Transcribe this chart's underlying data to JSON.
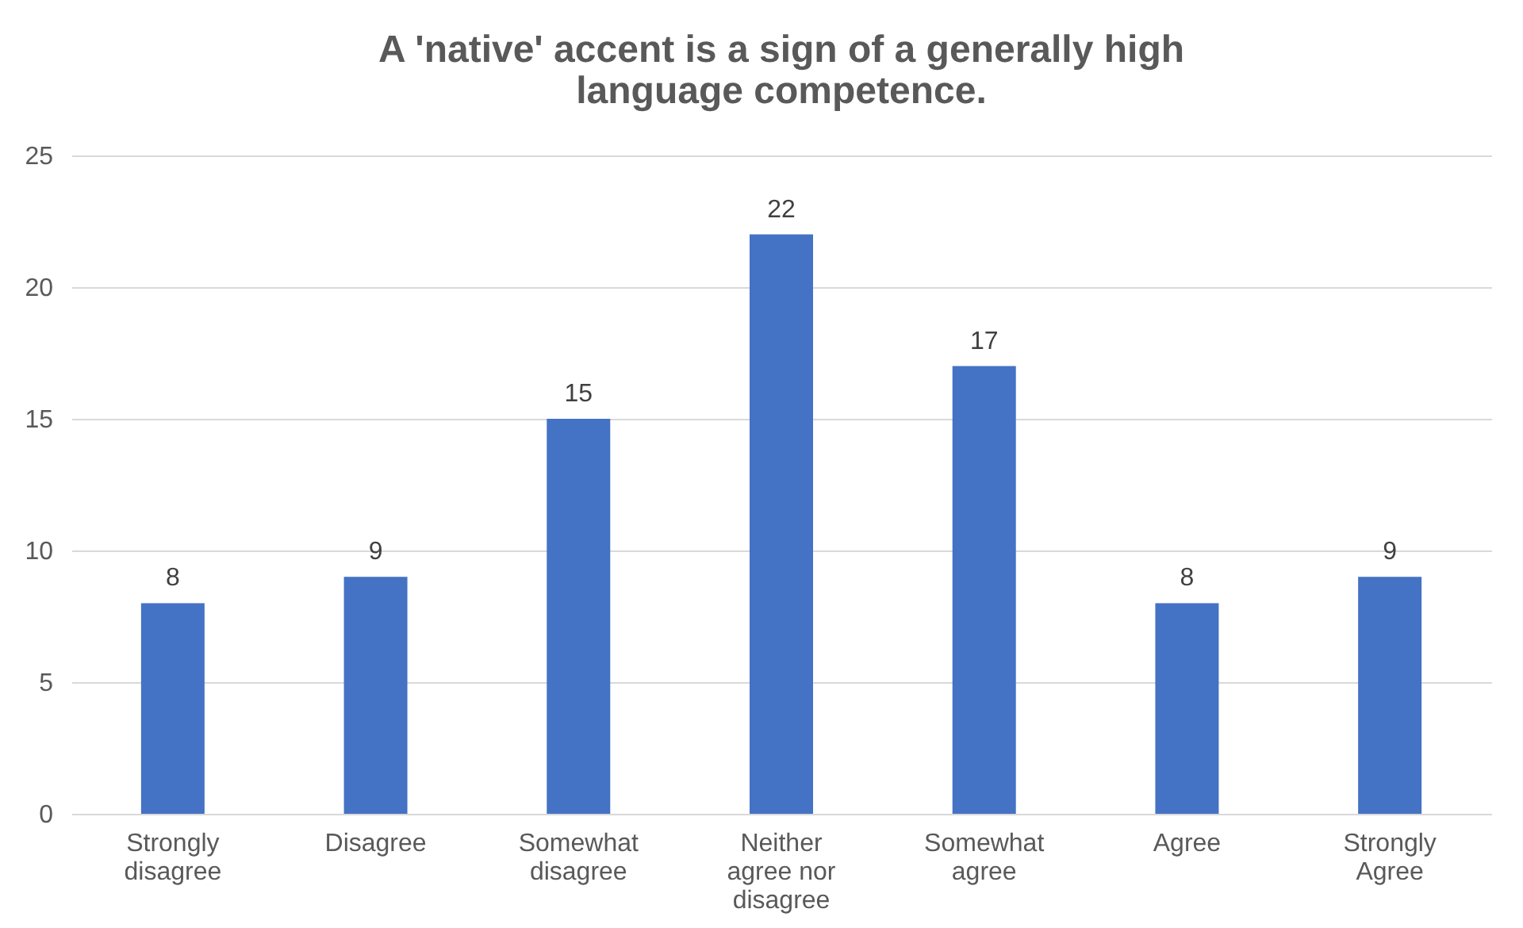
{
  "chart_data": {
    "type": "bar",
    "title": "A 'native' accent is a sign of a generally high language competence.",
    "categories": [
      "Strongly disagree",
      "Disagree",
      "Somewhat disagree",
      "Neither agree nor disagree",
      "Somewhat agree",
      "Agree",
      "Strongly Agree"
    ],
    "values": [
      8,
      9,
      15,
      22,
      17,
      8,
      9
    ],
    "color": "#4472c4",
    "ylim": [
      0,
      25
    ],
    "yticks": [
      0,
      5,
      10,
      15,
      20,
      25
    ],
    "grid": "y",
    "data_labels": true
  }
}
